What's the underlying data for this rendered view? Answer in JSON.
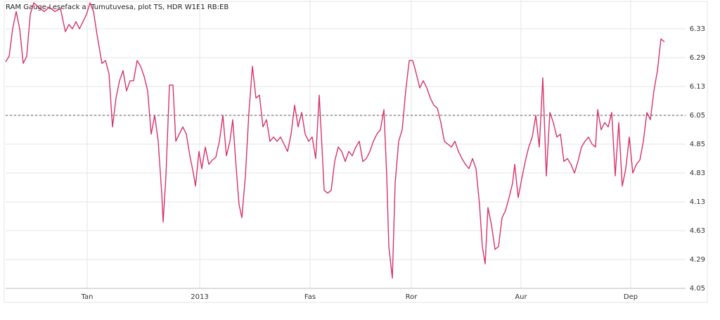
{
  "chart_data": {
    "type": "line",
    "title": "RAM Gauge-Lesefack a: Tumutuvesa, plot TS, HDR W1E1 RB:EB",
    "x": [
      0,
      5,
      10,
      15,
      20,
      25,
      30,
      35,
      40,
      47,
      55,
      62,
      70,
      78,
      85,
      90,
      95,
      100,
      105,
      110,
      115,
      120,
      125,
      130,
      137,
      142,
      147,
      152,
      157,
      162,
      167,
      172,
      177,
      182,
      187,
      192,
      197,
      202,
      207,
      212,
      217,
      222,
      224,
      228,
      233,
      238,
      242,
      247,
      252,
      257,
      262,
      267,
      270,
      275,
      279,
      284,
      289,
      294,
      299,
      304,
      309,
      314,
      319,
      323,
      328,
      332,
      336,
      341,
      346,
      351,
      356,
      361,
      366,
      371,
      376,
      381,
      386,
      391,
      396,
      401,
      406,
      411,
      416,
      421,
      426,
      431,
      436,
      441,
      446,
      451,
      453,
      458,
      463,
      468,
      473,
      478,
      483,
      488,
      493,
      498,
      503,
      508,
      513,
      518,
      523,
      528,
      533,
      538,
      542,
      545,
      550,
      554,
      559,
      564,
      569,
      574,
      579,
      584,
      589,
      594,
      599,
      604,
      609,
      614,
      619,
      624,
      629,
      634,
      639,
      644,
      649,
      654,
      659,
      664,
      669,
      674,
      678,
      682,
      686,
      691,
      696,
      701,
      706,
      711,
      716,
      721,
      724,
      729,
      734,
      739,
      744,
      749,
      754,
      759,
      764,
      769,
      774,
      779,
      784,
      789,
      794,
      799,
      804,
      809,
      814,
      819,
      824,
      829,
      834,
      839,
      842,
      847,
      852,
      857,
      862,
      867,
      872,
      877,
      882,
      887,
      892,
      897,
      902,
      907,
      912,
      917,
      922,
      927,
      932,
      937
    ],
    "series": [
      {
        "color": "#d6336c",
        "values": [
          7.85,
          8.05,
          9.0,
          9.6,
          9.0,
          7.8,
          8.05,
          9.5,
          9.9,
          9.75,
          9.6,
          9.75,
          9.6,
          9.7,
          8.9,
          9.15,
          9.0,
          9.25,
          9.0,
          9.25,
          9.5,
          9.9,
          9.6,
          8.8,
          7.8,
          7.9,
          7.45,
          5.6,
          6.6,
          7.2,
          7.55,
          6.85,
          7.2,
          7.2,
          7.9,
          7.7,
          7.35,
          6.85,
          5.35,
          6.0,
          5.1,
          3.3,
          2.3,
          3.9,
          7.05,
          7.05,
          5.1,
          5.35,
          5.6,
          5.35,
          4.6,
          4.0,
          3.55,
          4.75,
          4.15,
          4.9,
          4.3,
          4.45,
          4.55,
          5.1,
          6.0,
          4.6,
          5.1,
          5.85,
          4.15,
          2.9,
          2.45,
          3.9,
          6.1,
          7.7,
          6.6,
          6.7,
          5.6,
          5.85,
          5.1,
          5.25,
          5.1,
          5.25,
          5.0,
          4.75,
          5.35,
          6.35,
          5.6,
          6.1,
          5.35,
          5.1,
          5.25,
          4.5,
          6.7,
          4.4,
          3.4,
          3.3,
          3.4,
          4.4,
          4.9,
          4.75,
          4.4,
          4.75,
          4.6,
          4.9,
          5.1,
          4.4,
          4.5,
          4.75,
          5.1,
          5.35,
          5.5,
          6.2,
          3.9,
          1.45,
          0.35,
          3.65,
          5.1,
          5.5,
          6.85,
          7.9,
          7.9,
          7.45,
          6.95,
          7.2,
          6.95,
          6.6,
          6.35,
          6.25,
          5.75,
          5.1,
          5.0,
          4.9,
          5.1,
          4.75,
          4.5,
          4.3,
          4.15,
          4.5,
          4.15,
          2.9,
          1.45,
          0.85,
          2.8,
          2.2,
          1.35,
          1.45,
          2.45,
          2.7,
          3.15,
          3.65,
          4.3,
          3.15,
          3.8,
          4.4,
          4.9,
          5.25,
          6.0,
          4.9,
          7.3,
          3.9,
          6.1,
          5.75,
          5.25,
          5.35,
          4.4,
          4.5,
          4.3,
          4.0,
          4.4,
          4.9,
          5.1,
          5.25,
          5.0,
          4.9,
          6.2,
          5.5,
          5.75,
          5.6,
          6.1,
          3.9,
          5.75,
          3.55,
          4.15,
          5.25,
          4.0,
          4.3,
          4.45,
          5.1,
          6.1,
          5.85,
          6.85,
          7.55,
          8.65,
          8.55
        ]
      }
    ],
    "xlim": [
      0,
      1000
    ],
    "ylim": [
      0,
      10
    ],
    "xticks": [
      {
        "value": 116,
        "label": "Tan"
      },
      {
        "value": 276,
        "label": "2013"
      },
      {
        "value": 433,
        "label": "Fas"
      },
      {
        "value": 577,
        "label": "Ror"
      },
      {
        "value": 733,
        "label": "Aur"
      },
      {
        "value": 889,
        "label": "Dep"
      }
    ],
    "yticks": [
      {
        "value": 0,
        "label": "4.05"
      },
      {
        "value": 1,
        "label": "4.29"
      },
      {
        "value": 2,
        "label": "4.63"
      },
      {
        "value": 3,
        "label": "4.13"
      },
      {
        "value": 4,
        "label": "4.83"
      },
      {
        "value": 5,
        "label": "4.85"
      },
      {
        "value": 6,
        "label": "6.05"
      },
      {
        "value": 7,
        "label": "6.13"
      },
      {
        "value": 8,
        "label": "6.29"
      },
      {
        "value": 9,
        "label": "6.33"
      }
    ],
    "reference_line": 6,
    "grid": true
  }
}
